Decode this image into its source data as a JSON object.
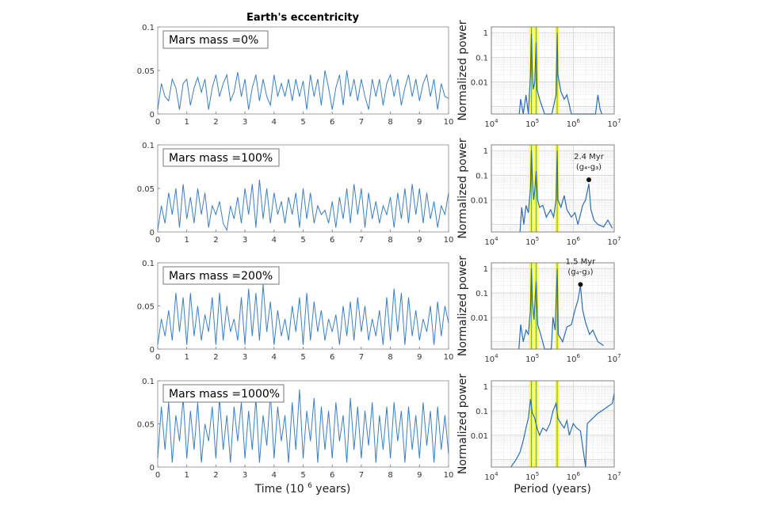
{
  "chart_data": [
    {
      "type": "line",
      "title": "Earth's eccentricity",
      "legend": "Mars mass =0%",
      "xlabel": "",
      "xlim": [
        0,
        10
      ],
      "ylim": [
        0,
        0.1
      ],
      "xticks": [
        "0",
        "1",
        "2",
        "3",
        "4",
        "5",
        "6",
        "7",
        "8",
        "9",
        "10"
      ],
      "yticks": [
        "0",
        "0.05",
        "0.1"
      ],
      "color": "#3a7fc4",
      "values": [
        0.005,
        0.035,
        0.02,
        0.015,
        0.04,
        0.03,
        0.005,
        0.035,
        0.04,
        0.01,
        0.03,
        0.042,
        0.025,
        0.04,
        0.005,
        0.03,
        0.045,
        0.02,
        0.035,
        0.045,
        0.015,
        0.025,
        0.048,
        0.02,
        0.04,
        0.005,
        0.03,
        0.045,
        0.015,
        0.04,
        0.02,
        0.01,
        0.045,
        0.02,
        0.035,
        0.02,
        0.04,
        0.015,
        0.04,
        0.02,
        0.038,
        0.005,
        0.045,
        0.02,
        0.04,
        0.01,
        0.05,
        0.03,
        0.005,
        0.03,
        0.045,
        0.01,
        0.05,
        0.02,
        0.04,
        0.015,
        0.04,
        0.02,
        0.005,
        0.04,
        0.02,
        0.04,
        0.01,
        0.035,
        0.045,
        0.02,
        0.04,
        0.01,
        0.03,
        0.045,
        0.02,
        0.04,
        0.015,
        0.035,
        0.045,
        0.02,
        0.04,
        0.005,
        0.035,
        0.02,
        0.018
      ]
    },
    {
      "type": "line",
      "legend": "Mars mass =100%",
      "xlim": [
        0,
        10
      ],
      "ylim": [
        0,
        0.1
      ],
      "xticks": [
        "0",
        "1",
        "2",
        "3",
        "4",
        "5",
        "6",
        "7",
        "8",
        "9",
        "10"
      ],
      "yticks": [
        "0",
        "0.05",
        "0.1"
      ],
      "color": "#3a7fc4",
      "values": [
        0.002,
        0.03,
        0.01,
        0.045,
        0.02,
        0.05,
        0.005,
        0.055,
        0.015,
        0.04,
        0.01,
        0.05,
        0.02,
        0.045,
        0.005,
        0.03,
        0.02,
        0.035,
        0.01,
        0.002,
        0.03,
        0.015,
        0.04,
        0.01,
        0.05,
        0.02,
        0.055,
        0.005,
        0.06,
        0.015,
        0.05,
        0.01,
        0.045,
        0.02,
        0.035,
        0.01,
        0.04,
        0.02,
        0.045,
        0.005,
        0.05,
        0.015,
        0.045,
        0.01,
        0.03,
        0.02,
        0.025,
        0.01,
        0.035,
        0.005,
        0.04,
        0.015,
        0.05,
        0.01,
        0.055,
        0.02,
        0.05,
        0.005,
        0.045,
        0.015,
        0.035,
        0.01,
        0.03,
        0.02,
        0.04,
        0.005,
        0.045,
        0.015,
        0.05,
        0.01,
        0.055,
        0.02,
        0.05,
        0.01,
        0.045,
        0.015,
        0.035,
        0.005,
        0.03,
        0.02,
        0.045
      ]
    },
    {
      "type": "line",
      "legend": "Mars mass =200%",
      "xlim": [
        0,
        10
      ],
      "ylim": [
        0,
        0.1
      ],
      "xticks": [
        "0",
        "1",
        "2",
        "3",
        "4",
        "5",
        "6",
        "7",
        "8",
        "9",
        "10"
      ],
      "yticks": [
        "0",
        "0.05",
        "0.1"
      ],
      "color": "#3a7fc4",
      "values": [
        0.005,
        0.035,
        0.015,
        0.045,
        0.01,
        0.065,
        0.02,
        0.06,
        0.005,
        0.065,
        0.015,
        0.05,
        0.01,
        0.04,
        0.02,
        0.06,
        0.005,
        0.065,
        0.01,
        0.05,
        0.02,
        0.035,
        0.01,
        0.06,
        0.005,
        0.07,
        0.015,
        0.065,
        0.01,
        0.075,
        0.02,
        0.055,
        0.005,
        0.045,
        0.015,
        0.035,
        0.01,
        0.05,
        0.02,
        0.06,
        0.005,
        0.065,
        0.01,
        0.055,
        0.02,
        0.045,
        0.01,
        0.035,
        0.02,
        0.04,
        0.005,
        0.05,
        0.015,
        0.055,
        0.01,
        0.06,
        0.02,
        0.05,
        0.01,
        0.035,
        0.015,
        0.045,
        0.005,
        0.06,
        0.01,
        0.07,
        0.02,
        0.065,
        0.005,
        0.06,
        0.015,
        0.045,
        0.01,
        0.035,
        0.02,
        0.05,
        0.005,
        0.055,
        0.015,
        0.05,
        0.03
      ]
    },
    {
      "type": "line",
      "legend": "Mars mass =1000%",
      "xlabel": "Time (10^6 years)",
      "xlim": [
        0,
        10
      ],
      "ylim": [
        0,
        0.1
      ],
      "xticks": [
        "0",
        "1",
        "2",
        "3",
        "4",
        "5",
        "6",
        "7",
        "8",
        "9",
        "10"
      ],
      "yticks": [
        "0",
        "0.05",
        "0.1"
      ],
      "color": "#3a7fc4",
      "values": [
        0.01,
        0.07,
        0.02,
        0.075,
        0.005,
        0.06,
        0.03,
        0.08,
        0.01,
        0.065,
        0.02,
        0.075,
        0.005,
        0.05,
        0.03,
        0.07,
        0.01,
        0.08,
        0.02,
        0.06,
        0.005,
        0.07,
        0.03,
        0.075,
        0.01,
        0.065,
        0.02,
        0.08,
        0.005,
        0.06,
        0.025,
        0.085,
        0.01,
        0.07,
        0.03,
        0.06,
        0.005,
        0.075,
        0.02,
        0.09,
        0.01,
        0.065,
        0.03,
        0.08,
        0.005,
        0.07,
        0.02,
        0.065,
        0.01,
        0.075,
        0.03,
        0.06,
        0.005,
        0.08,
        0.02,
        0.07,
        0.01,
        0.065,
        0.025,
        0.075,
        0.005,
        0.06,
        0.02,
        0.07,
        0.01,
        0.075,
        0.03,
        0.065,
        0.005,
        0.07,
        0.02,
        0.06,
        0.01,
        0.075,
        0.025,
        0.065,
        0.005,
        0.07,
        0.02,
        0.06,
        0.015
      ]
    },
    {
      "type": "line",
      "ylabel": "Normalized power",
      "xscale": "log",
      "yscale": "log",
      "xlim": [
        10000,
        10000000
      ],
      "ylim": [
        0.0005,
        1.7
      ],
      "xticks": [
        "10^4",
        "10^5",
        "10^6",
        "10^7"
      ],
      "yticks": [
        "0.01",
        "0.1",
        "1"
      ],
      "grid": true,
      "highlight_periods": [
        95000,
        124000,
        405000
      ],
      "highlight_color": "#f5f542",
      "color": "#2a6db5",
      "points": [
        [
          48000,
          0.0005
        ],
        [
          52000,
          0.002
        ],
        [
          60000,
          0.0005
        ],
        [
          70000,
          0.003
        ],
        [
          80000,
          0.0005
        ],
        [
          90000,
          0.02
        ],
        [
          95000,
          0.9
        ],
        [
          99000,
          0.05
        ],
        [
          105000,
          0.005
        ],
        [
          115000,
          0.01
        ],
        [
          124000,
          0.4
        ],
        [
          130000,
          0.005
        ],
        [
          150000,
          0.002
        ],
        [
          200000,
          0.0005
        ],
        [
          300000,
          0.0005
        ],
        [
          380000,
          0.003
        ],
        [
          405000,
          1.0
        ],
        [
          420000,
          0.02
        ],
        [
          500000,
          0.004
        ],
        [
          600000,
          0.002
        ],
        [
          700000,
          0.003
        ],
        [
          900000,
          0.0005
        ],
        [
          1200000,
          0.0005
        ],
        [
          2500000,
          0.0005
        ],
        [
          3500000,
          0.0005
        ],
        [
          4000000,
          0.003
        ],
        [
          4500000,
          0.0008
        ],
        [
          5000000,
          0.0005
        ]
      ]
    },
    {
      "type": "line",
      "ylabel": "Normalized power",
      "xscale": "log",
      "yscale": "log",
      "xlim": [
        10000,
        10000000
      ],
      "ylim": [
        0.0005,
        1.7
      ],
      "xticks": [
        "10^4",
        "10^5",
        "10^6",
        "10^7"
      ],
      "yticks": [
        "0.01",
        "0.1",
        "1"
      ],
      "grid": true,
      "highlight_periods": [
        95000,
        124000,
        405000
      ],
      "highlight_color": "#f5f542",
      "color": "#2a6db5",
      "annotation": {
        "line1": "2.4 Myr",
        "line2": "(g₄-g₃)",
        "period": 2400000,
        "power": 0.065
      },
      "points": [
        [
          50000,
          0.0005
        ],
        [
          55000,
          0.005
        ],
        [
          62000,
          0.001
        ],
        [
          70000,
          0.006
        ],
        [
          80000,
          0.003
        ],
        [
          90000,
          0.03
        ],
        [
          95000,
          1.0
        ],
        [
          100000,
          0.08
        ],
        [
          108000,
          0.01
        ],
        [
          116000,
          0.03
        ],
        [
          124000,
          0.15
        ],
        [
          135000,
          0.01
        ],
        [
          150000,
          0.005
        ],
        [
          180000,
          0.006
        ],
        [
          220000,
          0.002
        ],
        [
          280000,
          0.004
        ],
        [
          330000,
          0.002
        ],
        [
          380000,
          0.01
        ],
        [
          405000,
          1.0
        ],
        [
          420000,
          0.01
        ],
        [
          500000,
          0.005
        ],
        [
          600000,
          0.015
        ],
        [
          700000,
          0.004
        ],
        [
          900000,
          0.002
        ],
        [
          1100000,
          0.003
        ],
        [
          1300000,
          0.001
        ],
        [
          1700000,
          0.006
        ],
        [
          2000000,
          0.01
        ],
        [
          2400000,
          0.045
        ],
        [
          2700000,
          0.004
        ],
        [
          3200000,
          0.0015
        ],
        [
          4000000,
          0.001
        ],
        [
          5500000,
          0.0008
        ],
        [
          7000000,
          0.0015
        ],
        [
          9000000,
          0.0007
        ]
      ]
    },
    {
      "type": "line",
      "ylabel": "Normalized power",
      "xscale": "log",
      "yscale": "log",
      "xlim": [
        10000,
        10000000
      ],
      "ylim": [
        0.0005,
        1.7
      ],
      "xticks": [
        "10^4",
        "10^5",
        "10^6",
        "10^7"
      ],
      "yticks": [
        "0.01",
        "0.1",
        "1"
      ],
      "grid": true,
      "highlight_periods": [
        95000,
        124000,
        405000
      ],
      "highlight_color": "#f5f542",
      "color": "#2a6db5",
      "annotation": {
        "line1": "1.5 Myr",
        "line2": "(g₄-g₃)",
        "period": 1500000,
        "power": 0.22
      },
      "points": [
        [
          47000,
          0.0005
        ],
        [
          52000,
          0.005
        ],
        [
          60000,
          0.001
        ],
        [
          70000,
          0.003
        ],
        [
          80000,
          0.002
        ],
        [
          90000,
          0.02
        ],
        [
          95000,
          1.0
        ],
        [
          100000,
          0.05
        ],
        [
          110000,
          0.008
        ],
        [
          124000,
          0.3
        ],
        [
          135000,
          0.005
        ],
        [
          160000,
          0.002
        ],
        [
          200000,
          0.0005
        ],
        [
          290000,
          0.0005
        ],
        [
          320000,
          0.01
        ],
        [
          360000,
          0.003
        ],
        [
          405000,
          1.0
        ],
        [
          430000,
          0.002
        ],
        [
          550000,
          0.001
        ],
        [
          700000,
          0.004
        ],
        [
          900000,
          0.005
        ],
        [
          1100000,
          0.02
        ],
        [
          1300000,
          0.05
        ],
        [
          1500000,
          0.2
        ],
        [
          1700000,
          0.02
        ],
        [
          2000000,
          0.006
        ],
        [
          2500000,
          0.002
        ],
        [
          3000000,
          0.003
        ],
        [
          4000000,
          0.001
        ],
        [
          5500000,
          0.0007
        ]
      ]
    },
    {
      "type": "line",
      "ylabel": "Normalized power",
      "xlabel": "Period (years)",
      "xscale": "log",
      "yscale": "log",
      "xlim": [
        10000,
        10000000
      ],
      "ylim": [
        0.0005,
        1.7
      ],
      "xticks": [
        "10^4",
        "10^5",
        "10^6",
        "10^7"
      ],
      "yticks": [
        "0.01",
        "0.1",
        "1"
      ],
      "grid": true,
      "highlight_periods": [
        95000,
        124000,
        405000
      ],
      "highlight_color": "#f5f542",
      "color": "#2a6db5",
      "points": [
        [
          30000,
          0.0005
        ],
        [
          40000,
          0.001
        ],
        [
          50000,
          0.002
        ],
        [
          60000,
          0.006
        ],
        [
          70000,
          0.02
        ],
        [
          80000,
          0.05
        ],
        [
          90000,
          0.3
        ],
        [
          100000,
          0.08
        ],
        [
          115000,
          0.05
        ],
        [
          130000,
          0.02
        ],
        [
          150000,
          0.01
        ],
        [
          180000,
          0.02
        ],
        [
          220000,
          0.015
        ],
        [
          270000,
          0.03
        ],
        [
          320000,
          0.1
        ],
        [
          380000,
          0.2
        ],
        [
          420000,
          0.05
        ],
        [
          500000,
          0.03
        ],
        [
          600000,
          0.02
        ],
        [
          700000,
          0.04
        ],
        [
          800000,
          0.01
        ],
        [
          1000000,
          0.03
        ],
        [
          1200000,
          0.02
        ],
        [
          1500000,
          0.015
        ],
        [
          2000000,
          0.0005
        ],
        [
          2200000,
          0.03
        ],
        [
          3000000,
          0.05
        ],
        [
          4000000,
          0.08
        ],
        [
          5000000,
          0.1
        ],
        [
          7000000,
          0.15
        ],
        [
          9000000,
          0.2
        ],
        [
          10000000,
          0.5
        ]
      ]
    }
  ]
}
